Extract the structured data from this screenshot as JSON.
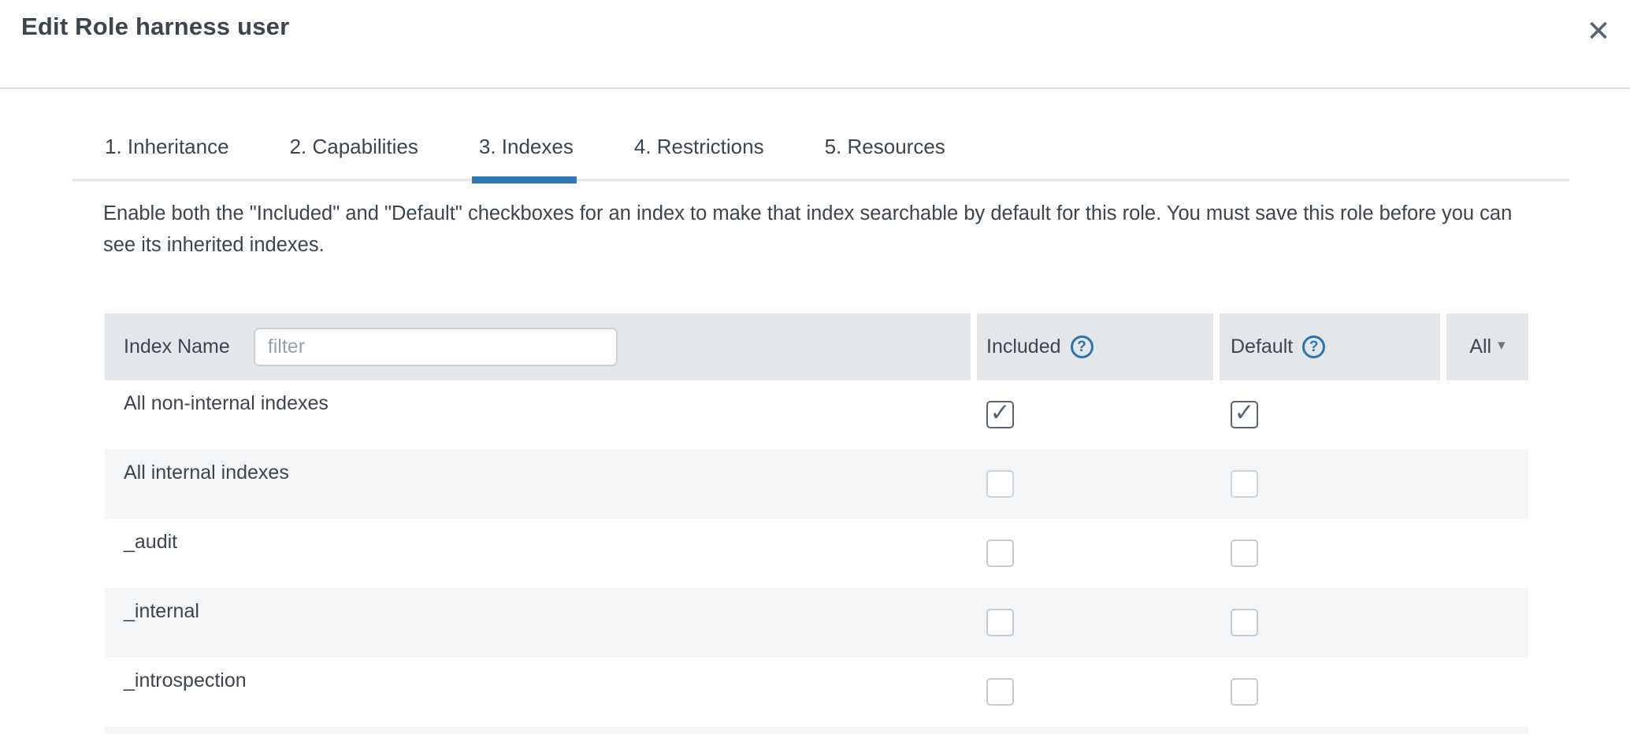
{
  "dialog": {
    "title": "Edit Role harness user"
  },
  "icons": {
    "close": "✕",
    "help": "?",
    "caret_down": "▾",
    "check": "✓"
  },
  "tabs": [
    {
      "label": "1. Inheritance",
      "active": false
    },
    {
      "label": "2. Capabilities",
      "active": false
    },
    {
      "label": "3. Indexes",
      "active": true
    },
    {
      "label": "4. Restrictions",
      "active": false
    },
    {
      "label": "5. Resources",
      "active": false
    }
  ],
  "description": "Enable both the \"Included\" and \"Default\" checkboxes for an index to make that index searchable by default for this role. You must save this role before you can see its inherited indexes.",
  "table": {
    "columns": {
      "name": "Index Name",
      "included": "Included",
      "default": "Default",
      "all": "All"
    },
    "filter_placeholder": "filter",
    "rows": [
      {
        "name": "All non-internal indexes",
        "included": true,
        "default": true,
        "disabled": false
      },
      {
        "name": "All internal indexes",
        "included": false,
        "default": false,
        "disabled": true
      },
      {
        "name": "_audit",
        "included": false,
        "default": false,
        "disabled": false
      },
      {
        "name": "_internal",
        "included": false,
        "default": false,
        "disabled": false
      },
      {
        "name": "_introspection",
        "included": false,
        "default": false,
        "disabled": false
      }
    ]
  },
  "colors": {
    "accent_blue": "#2e78b5",
    "header_gray": "#e4e7ea",
    "row_alt_gray": "#f4f5f6",
    "text_dark": "#3c444d"
  }
}
